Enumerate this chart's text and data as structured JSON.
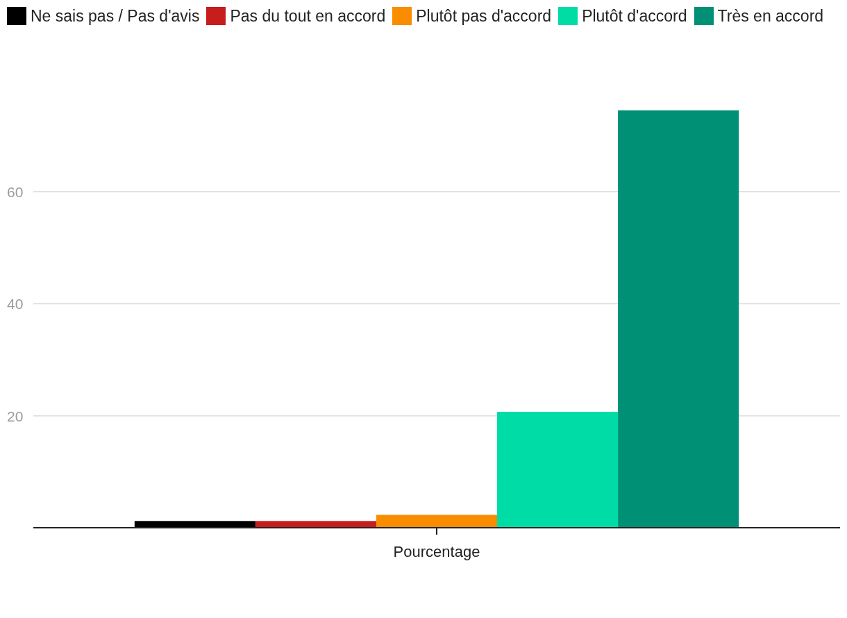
{
  "chart_data": {
    "type": "bar",
    "categories": [
      "Pourcentage"
    ],
    "series": [
      {
        "name": "Ne sais pas / Pas d'avis",
        "color": "#000000",
        "values": [
          1.2
        ]
      },
      {
        "name": "Pas du tout en accord",
        "color": "#c71e1d",
        "values": [
          1.2
        ]
      },
      {
        "name": "Plutôt pas d'accord",
        "color": "#fa8c00",
        "values": [
          2.3
        ]
      },
      {
        "name": "Plutôt d'accord",
        "color": "#00dca6",
        "values": [
          20.7
        ]
      },
      {
        "name": "Très en accord",
        "color": "#009076",
        "values": [
          74.5
        ]
      }
    ],
    "ylim": [
      0,
      74.5
    ],
    "yticks": [
      20,
      40,
      60
    ],
    "grid": "y",
    "legend": "top"
  }
}
